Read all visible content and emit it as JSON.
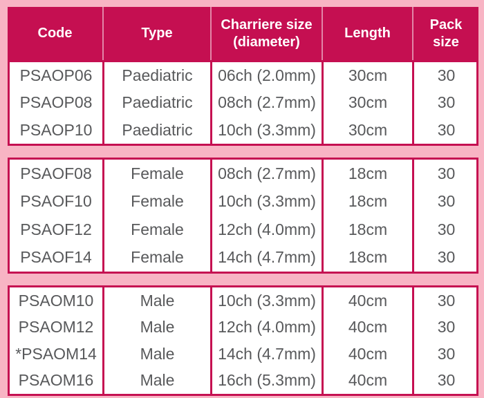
{
  "colors": {
    "accent": "#C50F51",
    "background": "#F8B4C4",
    "header_text": "#FFFFFF",
    "cell_text": "#58595B"
  },
  "table": {
    "columns": [
      {
        "key": "code",
        "lines": [
          "Code"
        ]
      },
      {
        "key": "type",
        "lines": [
          "Type"
        ]
      },
      {
        "key": "charriere",
        "lines": [
          "Charriere size",
          "(diameter)"
        ]
      },
      {
        "key": "length",
        "lines": [
          "Length"
        ]
      },
      {
        "key": "pack",
        "lines": [
          "Pack",
          "size"
        ]
      }
    ],
    "sections": [
      {
        "name": "paediatric",
        "rows": [
          {
            "code": "PSAOP06",
            "type": "Paediatric",
            "charriere": "06ch (2.0mm)",
            "length": "30cm",
            "pack": "30"
          },
          {
            "code": "PSAOP08",
            "type": "Paediatric",
            "charriere": "08ch (2.7mm)",
            "length": "30cm",
            "pack": "30"
          },
          {
            "code": "PSAOP10",
            "type": "Paediatric",
            "charriere": "10ch (3.3mm)",
            "length": "30cm",
            "pack": "30"
          }
        ]
      },
      {
        "name": "female",
        "rows": [
          {
            "code": "PSAOF08",
            "type": "Female",
            "charriere": "08ch (2.7mm)",
            "length": "18cm",
            "pack": "30"
          },
          {
            "code": "PSAOF10",
            "type": "Female",
            "charriere": "10ch (3.3mm)",
            "length": "18cm",
            "pack": "30"
          },
          {
            "code": "PSAOF12",
            "type": "Female",
            "charriere": "12ch (4.0mm)",
            "length": "18cm",
            "pack": "30"
          },
          {
            "code": "PSAOF14",
            "type": "Female",
            "charriere": "14ch (4.7mm)",
            "length": "18cm",
            "pack": "30"
          }
        ]
      },
      {
        "name": "male",
        "rows": [
          {
            "code": "PSAOM10",
            "type": "Male",
            "charriere": "10ch (3.3mm)",
            "length": "40cm",
            "pack": "30"
          },
          {
            "code": "PSAOM12",
            "type": "Male",
            "charriere": "12ch (4.0mm)",
            "length": "40cm",
            "pack": "30"
          },
          {
            "code": "*PSAOM14",
            "type": "Male",
            "charriere": "14ch (4.7mm)",
            "length": "40cm",
            "pack": "30"
          },
          {
            "code": "PSAOM16",
            "type": "Male",
            "charriere": "16ch (5.3mm)",
            "length": "40cm",
            "pack": "30"
          }
        ]
      }
    ]
  }
}
